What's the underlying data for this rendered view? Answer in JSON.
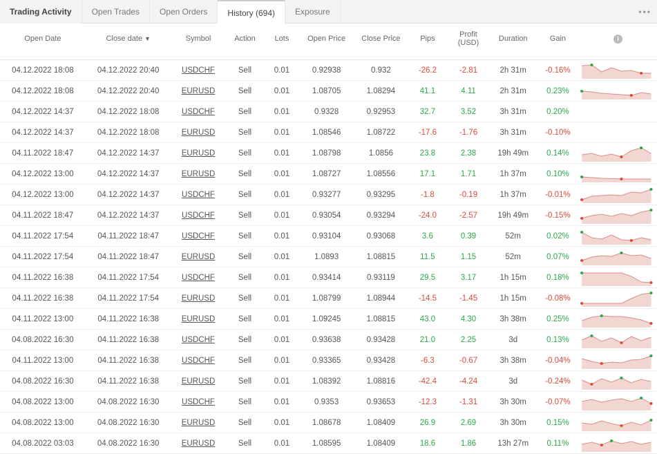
{
  "tabs": {
    "title": "Trading Activity",
    "items": [
      "Open Trades",
      "Open Orders",
      "History (694)",
      "Exposure"
    ],
    "active_index": 2
  },
  "columns": [
    {
      "key": "open_date",
      "label": "Open Date",
      "class": "col-opendate"
    },
    {
      "key": "close_date",
      "label": "Close date",
      "class": "col-closedate",
      "sorted": true
    },
    {
      "key": "symbol",
      "label": "Symbol",
      "class": "col-symbol"
    },
    {
      "key": "action",
      "label": "Action",
      "class": "col-action"
    },
    {
      "key": "lots",
      "label": "Lots",
      "class": "col-lots"
    },
    {
      "key": "open_price",
      "label": "Open Price",
      "class": "col-openprice"
    },
    {
      "key": "close_price",
      "label": "Close Price",
      "class": "col-closeprice"
    },
    {
      "key": "pips",
      "label": "Pips",
      "class": "col-pips"
    },
    {
      "key": "profit",
      "label": "Profit (USD)",
      "class": "col-profit"
    },
    {
      "key": "duration",
      "label": "Duration",
      "class": "col-duration"
    },
    {
      "key": "gain",
      "label": "Gain",
      "class": "col-gain"
    },
    {
      "key": "spark",
      "label": "",
      "class": "col-spark",
      "info": true
    }
  ],
  "spark_style": {
    "fill": "#f2d6d2",
    "stroke": "#d98f86",
    "stroke_width": 1,
    "dot_green": "#2aa84a",
    "dot_red": "#d94a3a",
    "dot_radius": 2
  },
  "rows": [
    {
      "open_date": "04.12.2022 18:08",
      "close_date": "04.12.2022 20:40",
      "symbol": "USDCHF",
      "action": "Sell",
      "lots": "0.01",
      "open_price": "0.92938",
      "close_price": "0.932",
      "pips": "-26.2",
      "profit": "-2.81",
      "duration": "2h 31m",
      "gain": "-0.16%",
      "pips_neg": true,
      "profit_neg": true,
      "gain_neg": true,
      "spark": [
        0.15,
        0.1,
        0.6,
        0.3,
        0.55,
        0.5,
        0.7,
        0.7
      ]
    },
    {
      "open_date": "04.12.2022 18:08",
      "close_date": "04.12.2022 20:40",
      "symbol": "EURUSD",
      "action": "Sell",
      "lots": "0.01",
      "open_price": "1.08705",
      "close_price": "1.08294",
      "pips": "41.1",
      "profit": "4.11",
      "duration": "2h 31m",
      "gain": "0.23%",
      "pips_neg": false,
      "profit_neg": false,
      "gain_neg": false,
      "spark": [
        0.5,
        0.55,
        0.65,
        0.7,
        0.75,
        0.8,
        0.6,
        0.7
      ]
    },
    {
      "open_date": "04.12.2022 14:37",
      "close_date": "04.12.2022 18:08",
      "symbol": "USDCHF",
      "action": "Sell",
      "lots": "0.01",
      "open_price": "0.9328",
      "close_price": "0.92953",
      "pips": "32.7",
      "profit": "3.52",
      "duration": "3h 31m",
      "gain": "0.20%",
      "pips_neg": false,
      "profit_neg": false,
      "gain_neg": false,
      "spark": null
    },
    {
      "open_date": "04.12.2022 14:37",
      "close_date": "04.12.2022 18:08",
      "symbol": "EURUSD",
      "action": "Sell",
      "lots": "0.01",
      "open_price": "1.08546",
      "close_price": "1.08722",
      "pips": "-17.6",
      "profit": "-1.76",
      "duration": "3h 31m",
      "gain": "-0.10%",
      "pips_neg": true,
      "profit_neg": true,
      "gain_neg": true,
      "spark": null
    },
    {
      "open_date": "04.11.2022 18:47",
      "close_date": "04.12.2022 14:37",
      "symbol": "EURUSD",
      "action": "Sell",
      "lots": "0.01",
      "open_price": "1.08798",
      "close_price": "1.0856",
      "pips": "23.8",
      "profit": "2.38",
      "duration": "19h 49m",
      "gain": "0.14%",
      "pips_neg": false,
      "profit_neg": false,
      "gain_neg": false,
      "spark": [
        0.6,
        0.5,
        0.7,
        0.55,
        0.75,
        0.3,
        0.1,
        0.5
      ]
    },
    {
      "open_date": "04.12.2022 13:00",
      "close_date": "04.12.2022 14:37",
      "symbol": "EURUSD",
      "action": "Sell",
      "lots": "0.01",
      "open_price": "1.08727",
      "close_price": "1.08556",
      "pips": "17.1",
      "profit": "1.71",
      "duration": "1h 37m",
      "gain": "0.10%",
      "pips_neg": false,
      "profit_neg": false,
      "gain_neg": false,
      "spark": [
        0.7,
        0.75,
        0.8,
        0.82,
        0.85,
        0.85,
        0.85,
        0.85
      ]
    },
    {
      "open_date": "04.12.2022 13:00",
      "close_date": "04.12.2022 14:37",
      "symbol": "USDCHF",
      "action": "Sell",
      "lots": "0.01",
      "open_price": "0.93277",
      "close_price": "0.93295",
      "pips": "-1.8",
      "profit": "-0.19",
      "duration": "1h 37m",
      "gain": "-0.01%",
      "pips_neg": true,
      "profit_neg": true,
      "gain_neg": true,
      "spark": [
        0.85,
        0.6,
        0.55,
        0.5,
        0.55,
        0.3,
        0.35,
        0.1
      ]
    },
    {
      "open_date": "04.11.2022 18:47",
      "close_date": "04.12.2022 14:37",
      "symbol": "USDCHF",
      "action": "Sell",
      "lots": "0.01",
      "open_price": "0.93054",
      "close_price": "0.93294",
      "pips": "-24.0",
      "profit": "-2.57",
      "duration": "19h 49m",
      "gain": "-0.15%",
      "pips_neg": true,
      "profit_neg": true,
      "gain_neg": true,
      "spark": [
        0.7,
        0.5,
        0.4,
        0.55,
        0.35,
        0.5,
        0.25,
        0.1
      ]
    },
    {
      "open_date": "04.11.2022 17:54",
      "close_date": "04.11.2022 18:47",
      "symbol": "USDCHF",
      "action": "Sell",
      "lots": "0.01",
      "open_price": "0.93104",
      "close_price": "0.93068",
      "pips": "3.6",
      "profit": "0.39",
      "duration": "52m",
      "gain": "0.02%",
      "pips_neg": false,
      "profit_neg": false,
      "gain_neg": false,
      "spark": [
        0.2,
        0.6,
        0.7,
        0.4,
        0.75,
        0.8,
        0.6,
        0.75
      ]
    },
    {
      "open_date": "04.11.2022 17:54",
      "close_date": "04.11.2022 18:47",
      "symbol": "EURUSD",
      "action": "Sell",
      "lots": "0.01",
      "open_price": "1.0893",
      "close_price": "1.08815",
      "pips": "11.5",
      "profit": "1.15",
      "duration": "52m",
      "gain": "0.07%",
      "pips_neg": false,
      "profit_neg": false,
      "gain_neg": false,
      "spark": [
        0.75,
        0.5,
        0.4,
        0.45,
        0.2,
        0.4,
        0.35,
        0.6
      ]
    },
    {
      "open_date": "04.11.2022 16:38",
      "close_date": "04.11.2022 17:54",
      "symbol": "USDCHF",
      "action": "Sell",
      "lots": "0.01",
      "open_price": "0.93414",
      "close_price": "0.93119",
      "pips": "29.5",
      "profit": "3.17",
      "duration": "1h 15m",
      "gain": "0.18%",
      "pips_neg": false,
      "profit_neg": false,
      "gain_neg": false,
      "spark": [
        0.15,
        0.15,
        0.15,
        0.15,
        0.15,
        0.4,
        0.8,
        0.85
      ]
    },
    {
      "open_date": "04.11.2022 16:38",
      "close_date": "04.11.2022 17:54",
      "symbol": "EURUSD",
      "action": "Sell",
      "lots": "0.01",
      "open_price": "1.08799",
      "close_price": "1.08944",
      "pips": "-14.5",
      "profit": "-1.45",
      "duration": "1h 15m",
      "gain": "-0.08%",
      "pips_neg": true,
      "profit_neg": true,
      "gain_neg": true,
      "spark": [
        0.85,
        0.85,
        0.85,
        0.85,
        0.85,
        0.5,
        0.2,
        0.1
      ]
    },
    {
      "open_date": "04.11.2022 13:00",
      "close_date": "04.11.2022 16:38",
      "symbol": "EURUSD",
      "action": "Sell",
      "lots": "0.01",
      "open_price": "1.09245",
      "close_price": "1.08815",
      "pips": "43.0",
      "profit": "4.30",
      "duration": "3h 38m",
      "gain": "0.25%",
      "pips_neg": false,
      "profit_neg": false,
      "gain_neg": false,
      "spark": [
        0.6,
        0.35,
        0.25,
        0.3,
        0.3,
        0.4,
        0.55,
        0.8
      ]
    },
    {
      "open_date": "04.08.2022 16:30",
      "close_date": "04.11.2022 16:38",
      "symbol": "USDCHF",
      "action": "Sell",
      "lots": "0.01",
      "open_price": "0.93638",
      "close_price": "0.93428",
      "pips": "21.0",
      "profit": "2.25",
      "duration": "3d",
      "gain": "0.13%",
      "pips_neg": false,
      "profit_neg": false,
      "gain_neg": false,
      "spark": [
        0.5,
        0.2,
        0.6,
        0.35,
        0.7,
        0.25,
        0.55,
        0.3
      ]
    },
    {
      "open_date": "04.11.2022 13:00",
      "close_date": "04.11.2022 16:38",
      "symbol": "USDCHF",
      "action": "Sell",
      "lots": "0.01",
      "open_price": "0.93365",
      "close_price": "0.93428",
      "pips": "-6.3",
      "profit": "-0.67",
      "duration": "3h 38m",
      "gain": "-0.04%",
      "pips_neg": true,
      "profit_neg": true,
      "gain_neg": true,
      "spark": [
        0.35,
        0.55,
        0.7,
        0.6,
        0.65,
        0.45,
        0.4,
        0.15
      ]
    },
    {
      "open_date": "04.08.2022 16:30",
      "close_date": "04.11.2022 16:38",
      "symbol": "EURUSD",
      "action": "Sell",
      "lots": "0.01",
      "open_price": "1.08392",
      "close_price": "1.08816",
      "pips": "-42.4",
      "profit": "-4.24",
      "duration": "3d",
      "gain": "-0.24%",
      "pips_neg": true,
      "profit_neg": true,
      "gain_neg": true,
      "spark": [
        0.4,
        0.7,
        0.3,
        0.55,
        0.25,
        0.6,
        0.35,
        0.5
      ]
    },
    {
      "open_date": "04.08.2022 13:00",
      "close_date": "04.08.2022 16:30",
      "symbol": "USDCHF",
      "action": "Sell",
      "lots": "0.01",
      "open_price": "0.9353",
      "close_price": "0.93653",
      "pips": "-12.3",
      "profit": "-1.31",
      "duration": "3h 30m",
      "gain": "-0.07%",
      "pips_neg": true,
      "profit_neg": true,
      "gain_neg": true,
      "spark": [
        0.45,
        0.3,
        0.5,
        0.35,
        0.25,
        0.45,
        0.2,
        0.6
      ]
    },
    {
      "open_date": "04.08.2022 13:00",
      "close_date": "04.08.2022 16:30",
      "symbol": "EURUSD",
      "action": "Sell",
      "lots": "0.01",
      "open_price": "1.08678",
      "close_price": "1.08409",
      "pips": "26.9",
      "profit": "2.69",
      "duration": "3h 30m",
      "gain": "0.15%",
      "pips_neg": false,
      "profit_neg": false,
      "gain_neg": false,
      "spark": [
        0.5,
        0.6,
        0.35,
        0.55,
        0.7,
        0.45,
        0.65,
        0.3
      ]
    },
    {
      "open_date": "04.08.2022 03:03",
      "close_date": "04.08.2022 16:30",
      "symbol": "EURUSD",
      "action": "Sell",
      "lots": "0.01",
      "open_price": "1.08595",
      "close_price": "1.08409",
      "pips": "18.6",
      "profit": "1.86",
      "duration": "13h 27m",
      "gain": "0.11%",
      "pips_neg": false,
      "profit_neg": false,
      "gain_neg": false,
      "spark": [
        0.55,
        0.4,
        0.6,
        0.3,
        0.5,
        0.35,
        0.55,
        0.4
      ]
    }
  ]
}
